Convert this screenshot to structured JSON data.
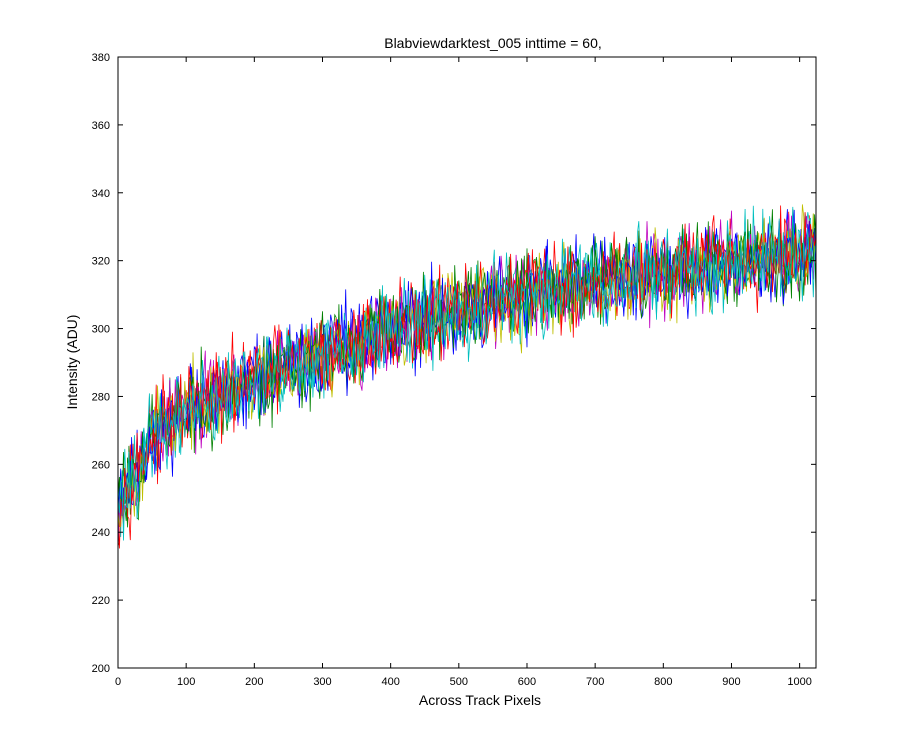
{
  "chart_data": {
    "type": "line",
    "title": "Blabviewdarktest_005 inttime = 60,",
    "xlabel": "Across Track Pixels",
    "ylabel": "Intensity (ADU)",
    "xlim": [
      0,
      1024
    ],
    "ylim": [
      200,
      380
    ],
    "grid": false,
    "x_ticks": [
      0,
      100,
      200,
      300,
      400,
      500,
      600,
      700,
      800,
      900,
      1000
    ],
    "y_ticks": [
      200,
      220,
      240,
      260,
      280,
      300,
      320,
      340,
      360,
      380
    ],
    "x_tick_labels": [
      "0",
      "100",
      "200",
      "300",
      "400",
      "500",
      "600",
      "700",
      "800",
      "900",
      "1000"
    ],
    "y_tick_labels": [
      "200",
      "220",
      "240",
      "260",
      "280",
      "300",
      "320",
      "340",
      "360",
      "380"
    ],
    "trend": {
      "x": [
        0,
        50,
        100,
        200,
        300,
        400,
        500,
        600,
        700,
        800,
        900,
        1024
      ],
      "y": [
        248,
        268,
        276,
        285,
        292,
        299,
        305,
        310,
        314,
        317,
        320,
        323
      ]
    },
    "noise_amplitude_adu": 18,
    "series": [
      {
        "name": "series-blue",
        "color": "#0000ff",
        "seed": 11
      },
      {
        "name": "series-green",
        "color": "#008000",
        "seed": 23
      },
      {
        "name": "series-red",
        "color": "#ff0000",
        "seed": 37
      },
      {
        "name": "series-cyan",
        "color": "#00bfbf",
        "seed": 41
      },
      {
        "name": "series-magenta",
        "color": "#bf00bf",
        "seed": 53
      },
      {
        "name": "series-olive",
        "color": "#bfbf00",
        "seed": 67
      },
      {
        "name": "series-blue-2",
        "color": "#0000ff",
        "seed": 71
      },
      {
        "name": "series-green-2",
        "color": "#008000",
        "seed": 83
      },
      {
        "name": "series-red-2",
        "color": "#ff0000",
        "seed": 97
      },
      {
        "name": "series-cyan-2",
        "color": "#00bfbf",
        "seed": 101
      }
    ]
  }
}
